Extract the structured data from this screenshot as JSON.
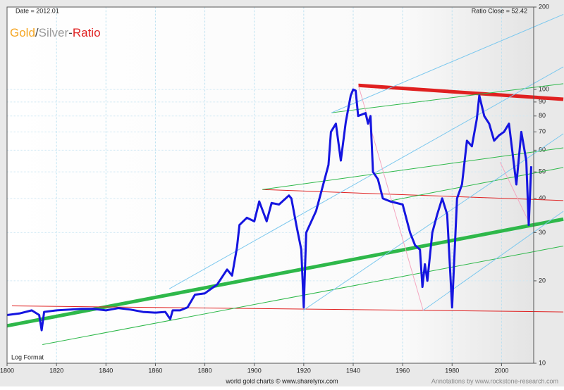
{
  "chart_data": {
    "type": "line",
    "title_parts": [
      {
        "text": "Gold",
        "color": "#f5a623"
      },
      {
        "text": "/",
        "color": "#444444"
      },
      {
        "text": "Silver",
        "color": "#9a9a9a"
      },
      {
        "text": "-",
        "color": "#444444"
      },
      {
        "text": "Ratio",
        "color": "#e02020"
      }
    ],
    "date_label": "Date = 2012.01",
    "close_label": "Ratio Close = 52.42",
    "scale_label": "Log Format",
    "source": "world gold charts © www.sharelynx.com",
    "annotation_credit": "Annotations by www.rockstone-research.com",
    "log_scale": true,
    "grid": true,
    "xlim": [
      1800,
      2013
    ],
    "xticks": [
      1800,
      1820,
      1840,
      1860,
      1880,
      1900,
      1920,
      1940,
      1960,
      1980,
      2000
    ],
    "ylim": [
      10,
      200
    ],
    "yticks": [
      10,
      20,
      30,
      40,
      50,
      60,
      70,
      80,
      90,
      100,
      200
    ],
    "x": [
      1800,
      1805,
      1810,
      1813,
      1814,
      1815,
      1820,
      1825,
      1830,
      1835,
      1840,
      1845,
      1850,
      1855,
      1860,
      1864,
      1866,
      1867,
      1870,
      1873,
      1876,
      1880,
      1885,
      1889,
      1891,
      1893,
      1894,
      1897,
      1900,
      1902,
      1905,
      1907,
      1910,
      1914,
      1915,
      1917,
      1919,
      1920,
      1921,
      1925,
      1930,
      1931,
      1933,
      1935,
      1937,
      1939,
      1940,
      1941,
      1942,
      1945,
      1946,
      1947,
      1948,
      1950,
      1952,
      1955,
      1960,
      1963,
      1965,
      1967,
      1968,
      1969,
      1970,
      1972,
      1974,
      1976,
      1978,
      1980,
      1982,
      1984,
      1986,
      1988,
      1990,
      1991,
      1993,
      1995,
      1997,
      1999,
      2001,
      2003,
      2006,
      2008,
      2010,
      2011,
      2012
    ],
    "series": [
      {
        "name": "Gold/Silver Ratio",
        "color": "#1515e0",
        "values": [
          15,
          15.2,
          15.6,
          15,
          13.2,
          15.4,
          15.6,
          15.7,
          15.8,
          15.8,
          15.6,
          15.9,
          15.7,
          15.4,
          15.3,
          15.4,
          14.5,
          15.6,
          15.6,
          16,
          17.8,
          18,
          19.4,
          22,
          20.9,
          26.5,
          32,
          34,
          33,
          39,
          33,
          38.5,
          38,
          41,
          40,
          32,
          26,
          16,
          30,
          36,
          53,
          70,
          75,
          55,
          76,
          95,
          100,
          99,
          80,
          82,
          75,
          80,
          50,
          47,
          40,
          39,
          38,
          30,
          27,
          26,
          19,
          23,
          20,
          30,
          35,
          40,
          35,
          16,
          40,
          45,
          65,
          62,
          78,
          95,
          80,
          75,
          65,
          68,
          70,
          75,
          45,
          70,
          55,
          32,
          52.42
        ]
      }
    ],
    "trend_lines": [
      {
        "x": [
          1942.1,
          2025
        ],
        "y": [
          103.5,
          92.1
        ],
        "color": "#e02020",
        "style": "thick"
      },
      {
        "x": [
          1800,
          2025
        ],
        "y": [
          13.7,
          33.6
        ],
        "color": "#2eb84a",
        "style": "thick"
      },
      {
        "x": [
          1903.3,
          2025
        ],
        "y": [
          43.1,
          39.3
        ],
        "color": "#e02020",
        "style": "thin"
      },
      {
        "x": [
          1802,
          2025
        ],
        "y": [
          16.2,
          15.4
        ],
        "color": "#e02020",
        "style": "thin"
      },
      {
        "x": [
          1814.3,
          2025
        ],
        "y": [
          11.7,
          26.8
        ],
        "color": "#2eb84a",
        "style": "thin"
      },
      {
        "x": [
          1903.3,
          2025
        ],
        "y": [
          43.1,
          61.2
        ],
        "color": "#2eb84a",
        "style": "thin"
      },
      {
        "x": [
          1931.2,
          2025
        ],
        "y": [
          82.2,
          105
        ],
        "color": "#2eb84a",
        "style": "thin"
      },
      {
        "x": [
          1955.5,
          2025
        ],
        "y": [
          39.3,
          51.9
        ],
        "color": "#2eb84a",
        "style": "thin"
      },
      {
        "x": [
          1919.8,
          2025
        ],
        "y": [
          15.6,
          68.9
        ],
        "color": "#7cc8ee",
        "style": "thin"
      },
      {
        "x": [
          1865.6,
          2025
        ],
        "y": [
          18.7,
          121
        ],
        "color": "#7cc8ee",
        "style": "thin"
      },
      {
        "x": [
          1968.3,
          2025
        ],
        "y": [
          15.6,
          35.9
        ],
        "color": "#7cc8ee",
        "style": "thin"
      },
      {
        "x": [
          1931.2,
          2025
        ],
        "y": [
          82.2,
          188
        ],
        "color": "#7cc8ee",
        "style": "thin"
      },
      {
        "x": [
          1942.1,
          1968.3
        ],
        "y": [
          103.5,
          15.6
        ],
        "color": "#f4a6c0",
        "style": "thin"
      },
      {
        "x": [
          1999.4,
          2011.4
        ],
        "y": [
          54.3,
          32.3
        ],
        "color": "#f4a6c0",
        "style": "thin"
      }
    ]
  }
}
